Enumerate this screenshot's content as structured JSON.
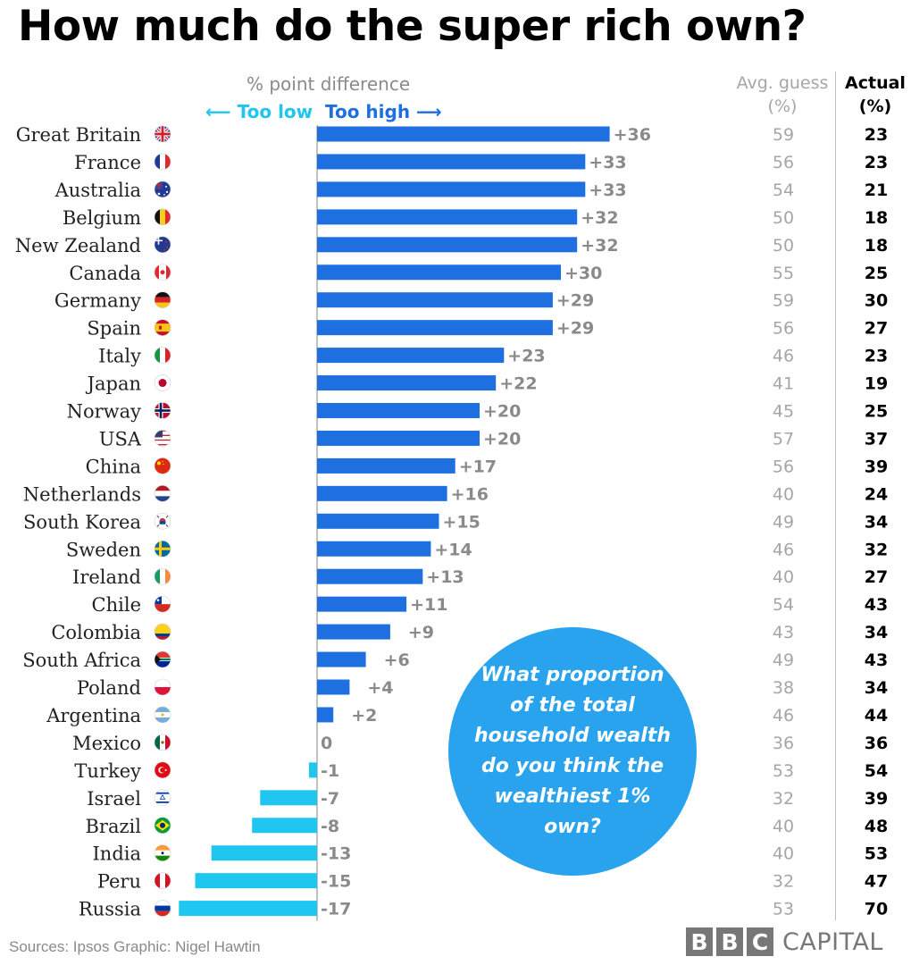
{
  "title": "How much do the super rich own?",
  "header": {
    "subtitle": "% point difference",
    "too_low": "⟵ Too low",
    "too_high": "Too high ⟶",
    "avg_guess": [
      "Avg. guess",
      "(%)"
    ],
    "actual": [
      "Actual",
      "(%)"
    ]
  },
  "colors": {
    "positive_bar": "#1e6fe0",
    "negative_bar": "#1fc6f0",
    "bubble": "#29a3ee",
    "label_gray": "#8a8a8a"
  },
  "chart_data": {
    "type": "bar",
    "orientation": "horizontal",
    "categories": [
      "Great Britain",
      "France",
      "Australia",
      "Belgium",
      "New Zealand",
      "Canada",
      "Germany",
      "Spain",
      "Italy",
      "Japan",
      "Norway",
      "USA",
      "China",
      "Netherlands",
      "South Korea",
      "Sweden",
      "Ireland",
      "Chile",
      "Colombia",
      "South Africa",
      "Poland",
      "Argentina",
      "Mexico",
      "Turkey",
      "Israel",
      "Brazil",
      "India",
      "Peru",
      "Russia"
    ],
    "difference_labels": [
      "+36",
      "+33",
      "+33",
      "+32",
      "+32",
      "+30",
      "+29",
      "+29",
      "+23",
      "+22",
      "+20",
      "+20",
      "+17",
      "+16",
      "+15",
      "+14",
      "+13",
      "+11",
      "+9",
      "+6",
      "+4",
      "+2",
      "0",
      "-1",
      "-7",
      "-8",
      "-13",
      "-15",
      "-17"
    ],
    "values": [
      36,
      33,
      33,
      32,
      32,
      30,
      29,
      29,
      23,
      22,
      20,
      20,
      17,
      16,
      15,
      14,
      13,
      11,
      9,
      6,
      4,
      2,
      0,
      -1,
      -7,
      -8,
      -13,
      -15,
      -17
    ],
    "avg_guess": [
      59,
      56,
      54,
      50,
      50,
      55,
      59,
      56,
      46,
      41,
      45,
      57,
      56,
      40,
      49,
      46,
      40,
      54,
      43,
      49,
      38,
      46,
      36,
      53,
      32,
      40,
      40,
      32,
      53
    ],
    "actual": [
      23,
      23,
      21,
      18,
      18,
      25,
      30,
      27,
      23,
      19,
      25,
      37,
      39,
      24,
      34,
      32,
      27,
      43,
      34,
      43,
      34,
      44,
      36,
      54,
      39,
      48,
      53,
      47,
      70
    ],
    "flags": [
      "uk-flag-icon",
      "france-flag-icon",
      "australia-flag-icon",
      "belgium-flag-icon",
      "new-zealand-flag-icon",
      "canada-flag-icon",
      "germany-flag-icon",
      "spain-flag-icon",
      "italy-flag-icon",
      "japan-flag-icon",
      "norway-flag-icon",
      "usa-flag-icon",
      "china-flag-icon",
      "netherlands-flag-icon",
      "south-korea-flag-icon",
      "sweden-flag-icon",
      "ireland-flag-icon",
      "chile-flag-icon",
      "colombia-flag-icon",
      "south-africa-flag-icon",
      "poland-flag-icon",
      "argentina-flag-icon",
      "mexico-flag-icon",
      "turkey-flag-icon",
      "israel-flag-icon",
      "brazil-flag-icon",
      "india-flag-icon",
      "peru-flag-icon",
      "russia-flag-icon"
    ],
    "xlim": [
      -17,
      36
    ],
    "xlabel": "% point difference"
  },
  "bubble_text": "What proportion of the total household wealth do you think the wealthiest 1% own?",
  "footer": {
    "sources": "Sources: Ipsos    Graphic: Nigel Hawtin",
    "logo_letters": [
      "B",
      "B",
      "C"
    ],
    "logo_word": "CAPITAL"
  }
}
